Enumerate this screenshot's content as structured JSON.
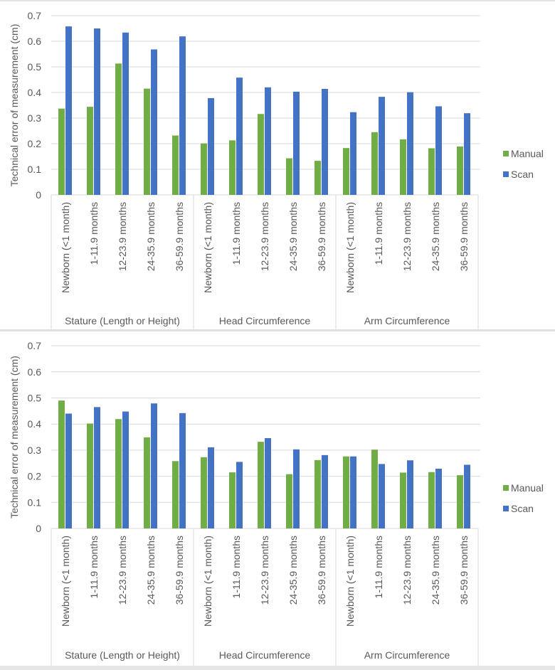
{
  "colors": {
    "manual": "#70AD47",
    "scan": "#4472C4",
    "grid": "#D9D9D9",
    "text": "#595959"
  },
  "chart_data": [
    {
      "type": "bar",
      "title": "",
      "ylabel": "Technical error of measurement (cm)",
      "xlabel": "",
      "ylim": [
        0,
        0.7
      ],
      "yticks": [
        "0",
        "0.1",
        "0.2",
        "0.3",
        "0.4",
        "0.5",
        "0.6",
        "0.7"
      ],
      "grid": true,
      "legend": "right",
      "groups": [
        "Stature (Length or Height)",
        "Head Circumference",
        "Arm Circumference"
      ],
      "categories": [
        "Newborn (<1 month)",
        "1-11.9 months",
        "12-23.9 months",
        "24-35.9 months",
        "36-59.9 months"
      ],
      "series": [
        {
          "name": "Manual",
          "values": [
            0.337,
            0.344,
            0.513,
            0.415,
            0.232,
            0.201,
            0.213,
            0.316,
            0.143,
            0.133,
            0.183,
            0.245,
            0.217,
            0.182,
            0.189
          ]
        },
        {
          "name": "Scan",
          "values": [
            0.658,
            0.65,
            0.634,
            0.568,
            0.619,
            0.378,
            0.458,
            0.42,
            0.403,
            0.414,
            0.323,
            0.383,
            0.401,
            0.346,
            0.319
          ]
        }
      ]
    },
    {
      "type": "bar",
      "title": "",
      "ylabel": "Technical error of measurement (cm)",
      "xlabel": "",
      "ylim": [
        0,
        0.7
      ],
      "yticks": [
        "0",
        "0.1",
        "0.2",
        "0.3",
        "0.4",
        "0.5",
        "0.6",
        "0.7"
      ],
      "grid": true,
      "legend": "right",
      "groups": [
        "Stature (Length or Height)",
        "Head Circumference",
        "Arm Circumference"
      ],
      "categories": [
        "Newborn (<1 month)",
        "1-11.9 months",
        "12-23.9 months",
        "24-35.9 months",
        "36-59.9 months"
      ],
      "series": [
        {
          "name": "Manual",
          "values": [
            0.49,
            0.402,
            0.419,
            0.349,
            0.258,
            0.273,
            0.215,
            0.332,
            0.208,
            0.262,
            0.276,
            0.302,
            0.214,
            0.216,
            0.204
          ]
        },
        {
          "name": "Scan",
          "values": [
            0.44,
            0.465,
            0.448,
            0.479,
            0.442,
            0.311,
            0.255,
            0.346,
            0.303,
            0.281,
            0.276,
            0.247,
            0.261,
            0.229,
            0.244
          ]
        }
      ]
    }
  ]
}
